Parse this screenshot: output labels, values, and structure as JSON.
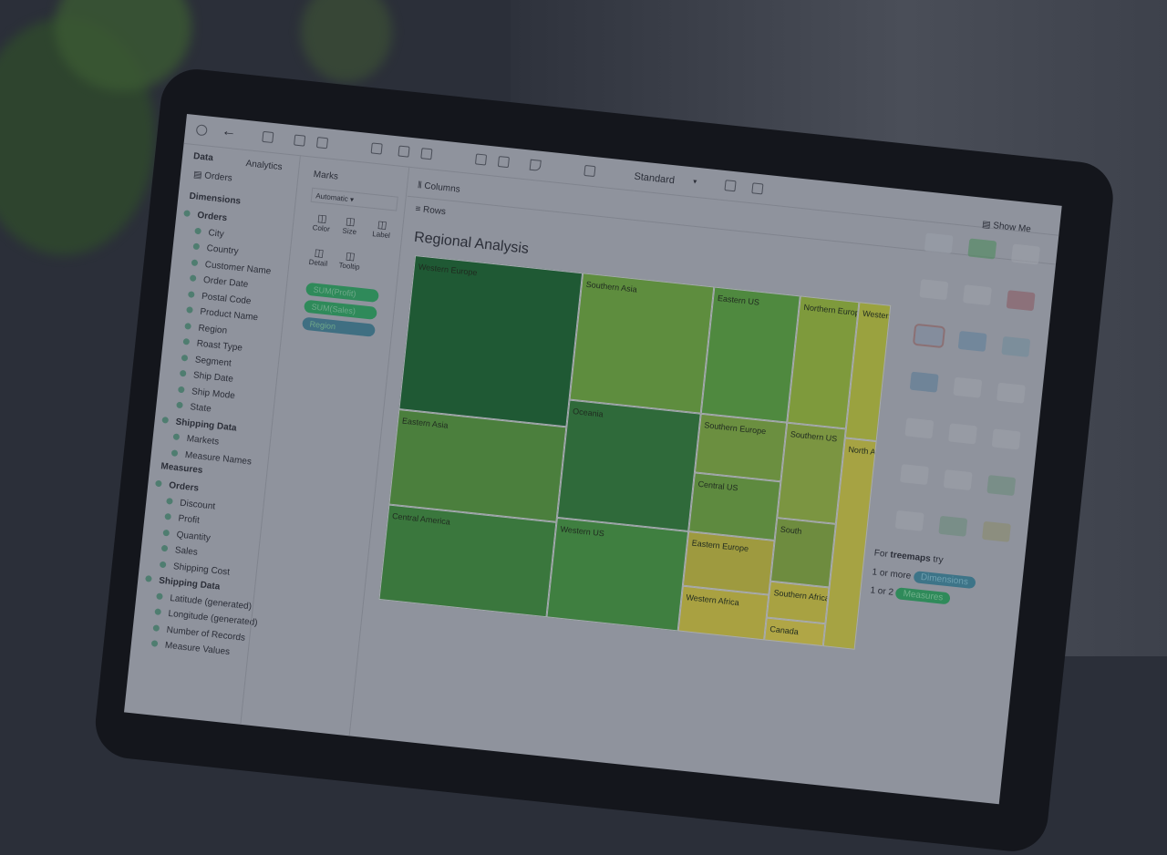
{
  "toolbar": {
    "view_select": "Standard",
    "show_me": "Show Me"
  },
  "data_pane": {
    "tab_data": "Data",
    "tab_analytics": "Analytics",
    "source": "Orders",
    "dimensions_header": "Dimensions",
    "dimensions": [
      {
        "label": "Orders",
        "group": true
      },
      {
        "label": "City"
      },
      {
        "label": "Country"
      },
      {
        "label": "Customer Name"
      },
      {
        "label": "Order Date"
      },
      {
        "label": "Postal Code"
      },
      {
        "label": "Product Name"
      },
      {
        "label": "Region"
      },
      {
        "label": "Roast Type"
      },
      {
        "label": "Segment"
      },
      {
        "label": "Ship Date"
      },
      {
        "label": "Ship Mode"
      },
      {
        "label": "State"
      },
      {
        "label": "Shipping Data",
        "group": true
      },
      {
        "label": "Markets"
      },
      {
        "label": "Measure Names"
      }
    ],
    "measures_header": "Measures",
    "measures": [
      {
        "label": "Orders",
        "group": true
      },
      {
        "label": "Discount"
      },
      {
        "label": "Profit"
      },
      {
        "label": "Quantity"
      },
      {
        "label": "Sales"
      },
      {
        "label": "Shipping Cost"
      },
      {
        "label": "Shipping Data",
        "group": true
      },
      {
        "label": "Latitude (generated)"
      },
      {
        "label": "Longitude (generated)"
      },
      {
        "label": "Number of Records"
      },
      {
        "label": "Measure Values"
      }
    ]
  },
  "marks": {
    "title": "Marks",
    "type": "Automatic",
    "buttons": [
      "Color",
      "Size",
      "Label",
      "Detail",
      "Tooltip"
    ],
    "pills": [
      {
        "label": "SUM(Profit)",
        "color": "#2f8a5a"
      },
      {
        "label": "SUM(Sales)",
        "color": "#2f8a5a"
      },
      {
        "label": "Region",
        "color": "#3f6f82"
      }
    ]
  },
  "shelves": {
    "columns": "Columns",
    "rows": "Rows"
  },
  "sheet_title": "Regional Analysis",
  "chart_data": {
    "type": "treemap",
    "title": "Regional Analysis",
    "columns": [
      [
        {
          "label": "Western Europe",
          "color": "#1f5934"
        },
        {
          "label": "Eastern Asia",
          "color": "#4b7f3d"
        },
        {
          "label": "Central America",
          "color": "#3a773d"
        }
      ],
      [
        {
          "label": "Southern Asia",
          "color": "#5e8d3e"
        },
        {
          "label": "Oceania",
          "color": "#2f6a3a"
        },
        {
          "label": "Western US",
          "color": "#3f7f40"
        }
      ],
      [
        {
          "label": "Eastern US",
          "color": "#4f893f"
        },
        {
          "label": "Southern Europe",
          "color": "#6b8f40"
        },
        {
          "label": "Central US",
          "color": "#5e8a3f"
        },
        {
          "label": "Eastern Europe",
          "color": "#9e9a3f"
        },
        {
          "label": "Western Africa",
          "color": "#a9a141"
        }
      ],
      [
        {
          "label": "Northern Europe",
          "color": "#7e9a3c"
        },
        {
          "label": "Southern US",
          "color": "#7b9541"
        },
        {
          "label": "South",
          "color": "#6e8c3f"
        },
        {
          "label": "Southern Africa",
          "color": "#a8a242"
        },
        {
          "label": "Canada",
          "color": "#b0a646"
        }
      ],
      [
        {
          "label": "Western Asia",
          "color": "#9aa23f"
        },
        {
          "label": "North Africa",
          "color": "#a6a343"
        }
      ]
    ]
  },
  "show_me_panel": {
    "hint_prefix": "For ",
    "hint_bold": "treemaps",
    "hint_suffix": " try",
    "req1": "1 or more",
    "req1_pill": "Dimensions",
    "req2": "1 or 2",
    "req2_pill": "Measures"
  }
}
